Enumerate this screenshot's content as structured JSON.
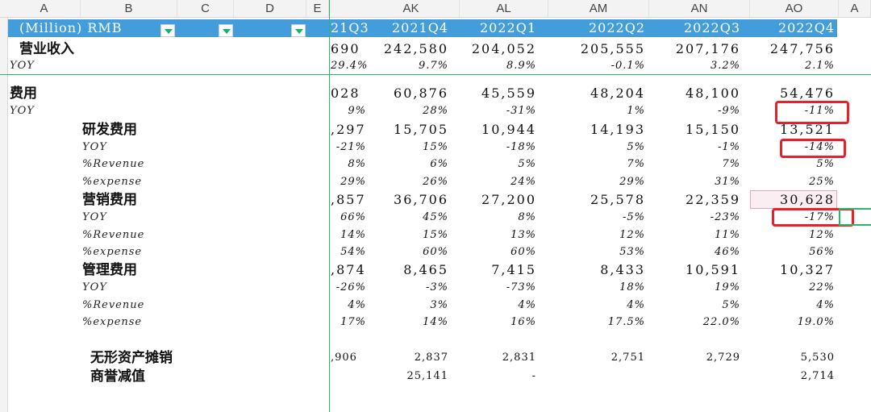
{
  "columns": [
    "A",
    "B",
    "C",
    "D",
    "E",
    "AK",
    "AL",
    "AM",
    "AN",
    "AO",
    "A"
  ],
  "header": {
    "unit": "(Million) RMB",
    "periods": [
      "21Q3",
      "2021Q4",
      "2022Q1",
      "2022Q2",
      "2022Q3",
      "2022Q4"
    ]
  },
  "rows": [
    {
      "label": "营业收入",
      "type": "lbl",
      "indent": 1,
      "values": [
        "690",
        "242,580",
        "204,052",
        "205,555",
        "207,176",
        "247,756"
      ]
    },
    {
      "label": "YOY",
      "type": "it",
      "indent": 0,
      "values": [
        "29.4%",
        "9.7%",
        "8.9%",
        "-0.1%",
        "3.2%",
        "2.1%"
      ]
    },
    {
      "label": "",
      "type": "gap",
      "indent": 0,
      "values": []
    },
    {
      "label": "费用",
      "type": "lbl",
      "indent": 0,
      "values": [
        "028",
        "60,876",
        "45,559",
        "48,204",
        "48,100",
        "54,476"
      ]
    },
    {
      "label": "YOY",
      "type": "it",
      "indent": 0,
      "values": [
        "9%",
        "28%",
        "-31%",
        "1%",
        "-9%",
        "-11%"
      ]
    },
    {
      "label": "研发费用",
      "type": "lbl",
      "indent": 2,
      "values": [
        ",297",
        "15,705",
        "10,944",
        "14,193",
        "15,150",
        "13,521"
      ]
    },
    {
      "label": "YOY",
      "type": "it",
      "indent": 2,
      "values": [
        "-21%",
        "15%",
        "-18%",
        "5%",
        "-1%",
        "-14%"
      ]
    },
    {
      "label": "%Revenue",
      "type": "it",
      "indent": 2,
      "values": [
        "8%",
        "6%",
        "5%",
        "7%",
        "7%",
        "5%"
      ]
    },
    {
      "label": "%expense",
      "type": "it",
      "indent": 2,
      "values": [
        "29%",
        "26%",
        "24%",
        "29%",
        "31%",
        "25%"
      ]
    },
    {
      "label": "营销费用",
      "type": "lbl",
      "indent": 2,
      "values": [
        ",857",
        "36,706",
        "27,200",
        "25,578",
        "22,359",
        "30,628"
      ]
    },
    {
      "label": "YOY",
      "type": "it",
      "indent": 2,
      "values": [
        "66%",
        "45%",
        "8%",
        "-5%",
        "-23%",
        "-17%"
      ]
    },
    {
      "label": "%Revenue",
      "type": "it",
      "indent": 2,
      "values": [
        "14%",
        "15%",
        "13%",
        "12%",
        "11%",
        "12%"
      ]
    },
    {
      "label": "%expense",
      "type": "it",
      "indent": 2,
      "values": [
        "54%",
        "60%",
        "60%",
        "53%",
        "46%",
        "56%"
      ]
    },
    {
      "label": "管理费用",
      "type": "lbl",
      "indent": 2,
      "values": [
        ",874",
        "8,465",
        "7,415",
        "8,433",
        "10,591",
        "10,327"
      ]
    },
    {
      "label": "YOY",
      "type": "it",
      "indent": 2,
      "values": [
        "-26%",
        "-3%",
        "-73%",
        "18%",
        "19%",
        "22%"
      ]
    },
    {
      "label": "%Revenue",
      "type": "it",
      "indent": 2,
      "values": [
        "4%",
        "3%",
        "4%",
        "4%",
        "5%",
        "4%"
      ]
    },
    {
      "label": "%expense",
      "type": "it",
      "indent": 2,
      "values": [
        "17%",
        "14%",
        "16%",
        "17.5%",
        "22.0%",
        "19.0%"
      ]
    },
    {
      "label": "",
      "type": "gap",
      "indent": 0,
      "values": []
    },
    {
      "label": "无形资产摊销",
      "type": "lbl",
      "indent": 3,
      "small": true,
      "values": [
        ",906",
        "2,837",
        "2,831",
        "2,751",
        "2,729",
        "5,530"
      ]
    },
    {
      "label": "商誉减值",
      "type": "lbl",
      "indent": 3,
      "small": true,
      "values": [
        "",
        "25,141",
        "-",
        "",
        "",
        "2,714"
      ]
    }
  ],
  "highlight_color": "#e8202a"
}
